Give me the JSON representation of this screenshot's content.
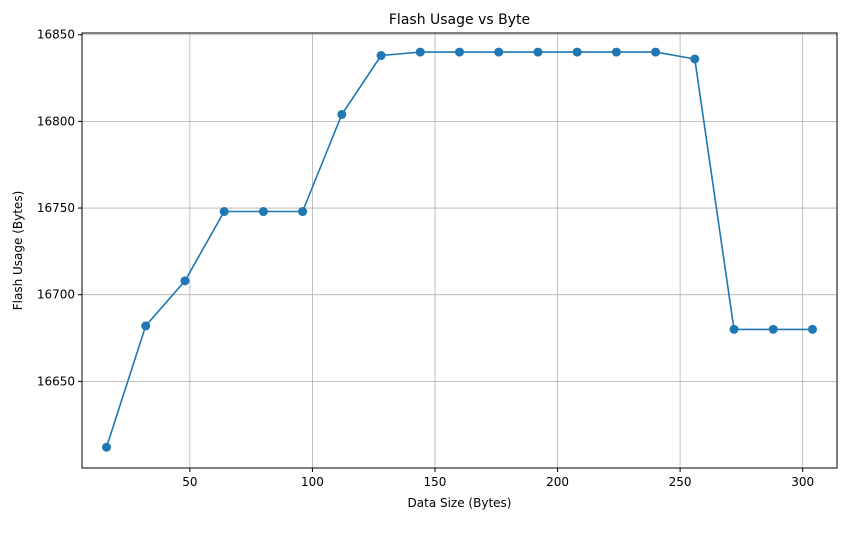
{
  "chart_data": {
    "type": "line",
    "title": "Flash Usage vs Byte",
    "xlabel": "Data Size (Bytes)",
    "ylabel": "Flash Usage (Bytes)",
    "xlim": [
      6,
      314
    ],
    "ylim": [
      16600,
      16851
    ],
    "xticks": [
      50,
      100,
      150,
      200,
      250,
      300
    ],
    "yticks": [
      16650,
      16700,
      16750,
      16800,
      16850
    ],
    "grid": true,
    "marker": "circle",
    "colors": {
      "series": "#1f77b4",
      "grid": "#b0b0b0",
      "axes": "#000000",
      "background": "#ffffff"
    },
    "series": [
      {
        "x": [
          16,
          32,
          48,
          64,
          80,
          96,
          112,
          128,
          144,
          160,
          176,
          192,
          208,
          224,
          240,
          256,
          272,
          288,
          304
        ],
        "y": [
          16612,
          16682,
          16708,
          16748,
          16748,
          16748,
          16804,
          16838,
          16840,
          16840,
          16840,
          16840,
          16840,
          16840,
          16840,
          16836,
          16680,
          16680,
          16680
        ]
      }
    ]
  }
}
